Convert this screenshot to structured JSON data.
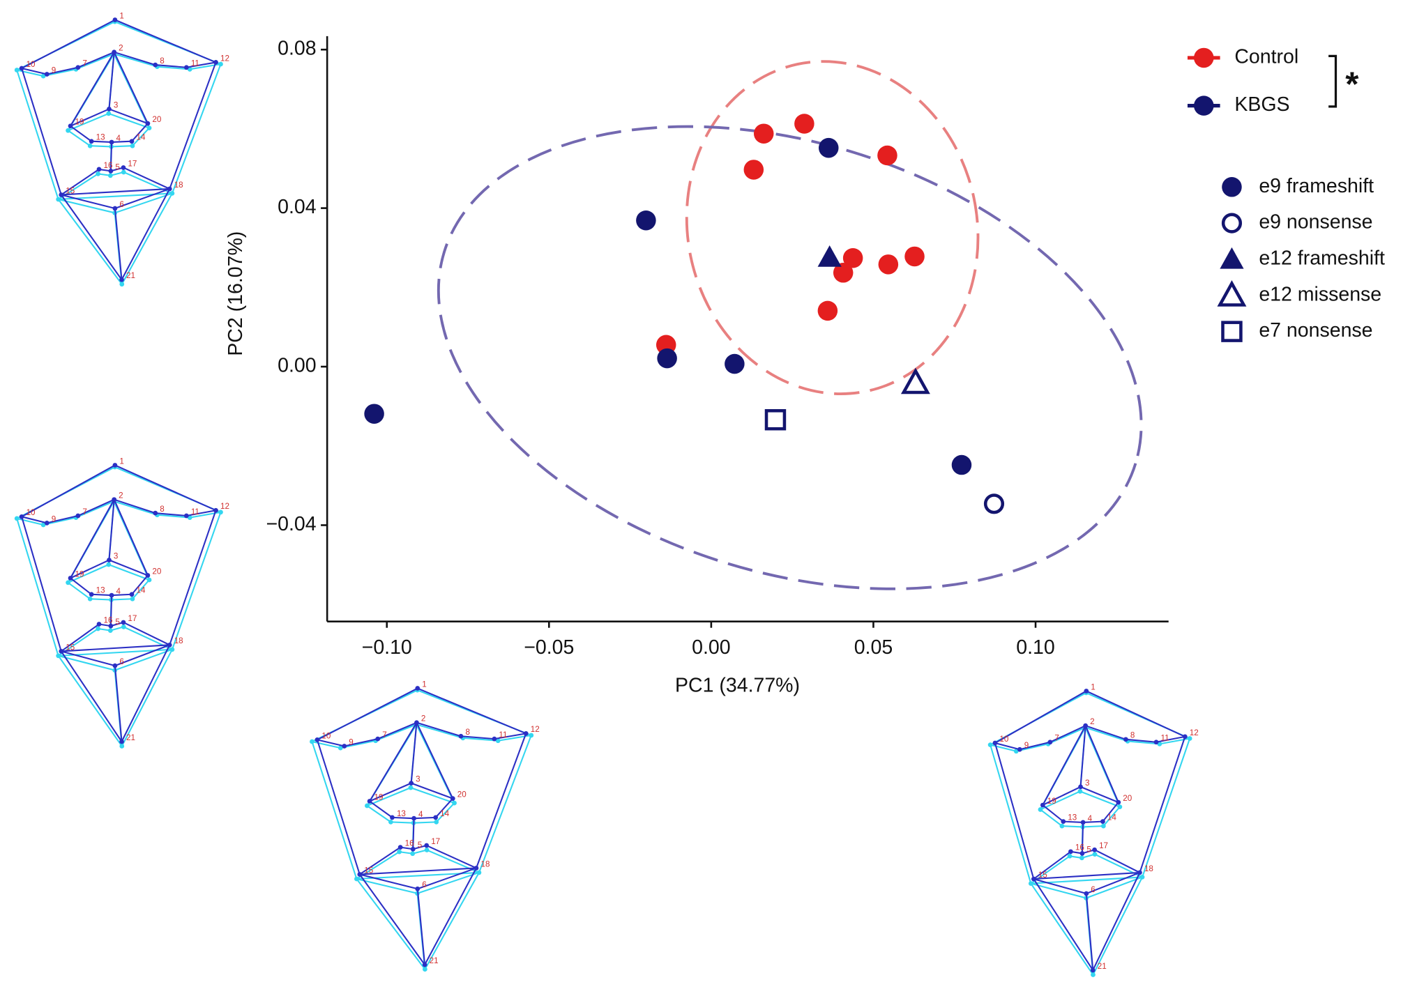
{
  "chart_data": {
    "type": "scatter",
    "xlabel": "PC1 (34.77%)",
    "ylabel": "PC2 (16.07%)",
    "xlim": [
      -0.1184,
      0.141
    ],
    "ylim": [
      -0.0643,
      0.0834
    ],
    "xticks": [
      {
        "value": -0.1,
        "label": "−0.10"
      },
      {
        "value": -0.05,
        "label": "−0.05"
      },
      {
        "value": 0,
        "label": "0.00"
      },
      {
        "value": 0.05,
        "label": "0.05"
      },
      {
        "value": 0.1,
        "label": "0.10"
      }
    ],
    "yticks": [
      {
        "value": -0.04,
        "label": "−0.04"
      },
      {
        "value": 0,
        "label": "0.00"
      },
      {
        "value": 0.04,
        "label": "0.04"
      },
      {
        "value": 0.08,
        "label": "0.08"
      }
    ],
    "groups": [
      {
        "name": "Control",
        "color": "#e41f1f"
      },
      {
        "name": "KBGS",
        "color": "#13156e"
      }
    ],
    "significance": "*",
    "series": [
      {
        "name": "Control",
        "color": "#e41f1f",
        "marker": "circle",
        "filled": true,
        "legend": false,
        "x": [
          0.0162,
          0.0287,
          0.0131,
          0.0543,
          0.0437,
          0.0407,
          0.0546,
          0.0627,
          0.0359,
          -0.0139
        ],
        "y": [
          0.0588,
          0.0613,
          0.0497,
          0.0533,
          0.0274,
          0.0237,
          0.0258,
          0.0278,
          0.0141,
          0.0055
        ]
      },
      {
        "name": "e9 frameshift",
        "color": "#13156e",
        "marker": "circle",
        "filled": true,
        "legend": true,
        "x": [
          0.0362,
          -0.0201,
          -0.0136,
          0.0072,
          -0.1039,
          0.0772
        ],
        "y": [
          0.0552,
          0.0369,
          0.0021,
          0.0007,
          -0.0119,
          -0.0248
        ]
      },
      {
        "name": "e9 nonsense",
        "color": "#13156e",
        "marker": "circle",
        "filled": false,
        "legend": true,
        "x": [
          0.0872
        ],
        "y": [
          -0.0346
        ]
      },
      {
        "name": "e12 frameshift",
        "color": "#13156e",
        "marker": "triangle",
        "filled": true,
        "legend": true,
        "x": [
          0.0365
        ],
        "y": [
          0.0276
        ]
      },
      {
        "name": "e12 missense",
        "color": "#13156e",
        "marker": "triangle",
        "filled": false,
        "legend": true,
        "x": [
          0.063
        ],
        "y": [
          -0.0041
        ]
      },
      {
        "name": "e7 nonsense",
        "color": "#13156e",
        "marker": "square",
        "filled": false,
        "legend": true,
        "x": [
          0.0198
        ],
        "y": [
          -0.0134
        ]
      }
    ]
  },
  "face_diagram": {
    "landmark_labels": [
      "1",
      "2",
      "3",
      "4",
      "5",
      "6",
      "7",
      "8",
      "9",
      "10",
      "11",
      "12",
      "13",
      "14",
      "15",
      "16",
      "17",
      "18",
      "19",
      "20",
      "21"
    ]
  }
}
